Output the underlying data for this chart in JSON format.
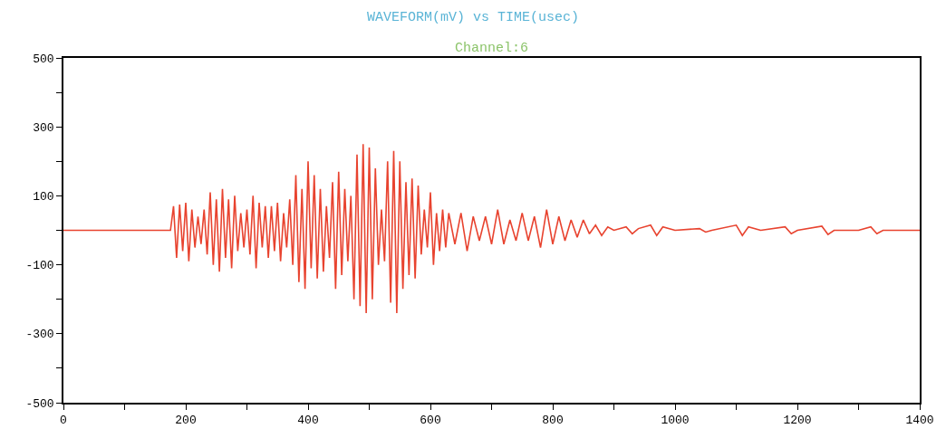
{
  "chart_data": {
    "type": "line",
    "title": "WAVEFORM(mV) vs TIME(usec)",
    "subtitle": "Channel:6",
    "x": [
      0,
      175,
      180,
      185,
      190,
      195,
      200,
      205,
      210,
      215,
      220,
      225,
      230,
      235,
      240,
      245,
      250,
      255,
      260,
      265,
      270,
      275,
      280,
      285,
      290,
      295,
      300,
      305,
      310,
      315,
      320,
      325,
      330,
      335,
      340,
      345,
      350,
      355,
      360,
      365,
      370,
      375,
      380,
      385,
      390,
      395,
      400,
      405,
      410,
      415,
      420,
      425,
      430,
      435,
      440,
      445,
      450,
      455,
      460,
      465,
      470,
      475,
      480,
      485,
      490,
      495,
      500,
      505,
      510,
      515,
      520,
      525,
      530,
      535,
      540,
      545,
      550,
      555,
      560,
      565,
      570,
      575,
      580,
      585,
      590,
      595,
      600,
      605,
      610,
      615,
      620,
      625,
      630,
      640,
      650,
      660,
      670,
      680,
      690,
      700,
      710,
      720,
      730,
      740,
      750,
      760,
      770,
      780,
      790,
      800,
      810,
      820,
      830,
      840,
      850,
      860,
      870,
      880,
      890,
      900,
      920,
      930,
      940,
      960,
      970,
      980,
      1000,
      1040,
      1050,
      1060,
      1100,
      1110,
      1120,
      1140,
      1180,
      1190,
      1200,
      1240,
      1250,
      1260,
      1300,
      1320,
      1330,
      1340,
      1400
    ],
    "series": [
      {
        "color": "#e8432f",
        "values": [
          0,
          0,
          70,
          -80,
          75,
          -60,
          80,
          -90,
          60,
          -50,
          40,
          -40,
          60,
          -70,
          110,
          -100,
          90,
          -120,
          120,
          -80,
          90,
          -110,
          100,
          -60,
          50,
          -50,
          60,
          -70,
          100,
          -110,
          80,
          -50,
          70,
          -80,
          70,
          -60,
          80,
          -90,
          50,
          -50,
          90,
          -100,
          160,
          -150,
          120,
          -170,
          200,
          -110,
          160,
          -140,
          120,
          -120,
          70,
          -80,
          140,
          -170,
          170,
          -130,
          120,
          -90,
          100,
          -200,
          220,
          -220,
          250,
          -240,
          240,
          -200,
          180,
          -100,
          60,
          -90,
          200,
          -210,
          230,
          -240,
          200,
          -170,
          140,
          -130,
          150,
          -140,
          130,
          -70,
          60,
          -50,
          110,
          -100,
          50,
          -60,
          60,
          -50,
          50,
          -40,
          50,
          -60,
          40,
          -30,
          40,
          -40,
          60,
          -40,
          30,
          -30,
          50,
          -30,
          40,
          -50,
          60,
          -40,
          40,
          -30,
          30,
          -20,
          30,
          -10,
          15,
          -15,
          10,
          0,
          10,
          -10,
          5,
          15,
          -15,
          10,
          0,
          5,
          -5,
          0,
          15,
          -15,
          10,
          0,
          10,
          -10,
          0,
          12,
          -12,
          0,
          0,
          10,
          -10,
          0,
          0
        ]
      }
    ],
    "xlim": [
      0,
      1400
    ],
    "ylim": [
      -500,
      500
    ],
    "xticks": [
      0,
      {
        "value": 100,
        "label": null
      },
      200,
      {
        "value": 300,
        "label": null
      },
      400,
      {
        "value": 500,
        "label": null
      },
      600,
      {
        "value": 700,
        "label": null
      },
      800,
      {
        "value": 900,
        "label": null
      },
      1000,
      {
        "value": 1100,
        "label": null
      },
      1200,
      {
        "value": 1300,
        "label": null
      },
      1400
    ],
    "yticks": [
      -500,
      {
        "value": -400,
        "label": null
      },
      -300,
      {
        "value": -200,
        "label": null
      },
      -100,
      {
        "value": 0,
        "label": null
      },
      100,
      {
        "value": 200,
        "label": null
      },
      300,
      {
        "value": 400,
        "label": null
      },
      500
    ],
    "marker": "none",
    "line_style": "solid"
  }
}
